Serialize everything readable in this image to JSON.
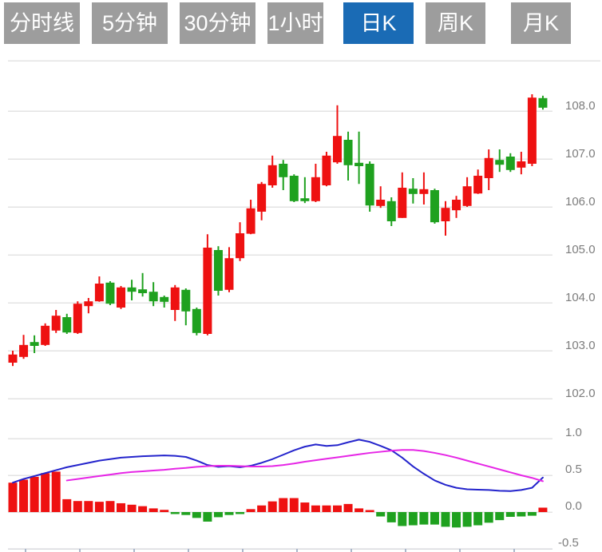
{
  "toolbar": {
    "tabs": [
      {
        "label": "分时线",
        "active": false
      },
      {
        "label": "5分钟",
        "active": false
      },
      {
        "label": "30分钟",
        "active": false
      },
      {
        "label": "1小时",
        "active": false
      },
      {
        "label": "日K",
        "active": true
      },
      {
        "label": "周K",
        "active": false
      },
      {
        "label": "月K",
        "active": false
      }
    ]
  },
  "colors": {
    "up_candle": "#ee1111",
    "down_candle": "#1fa11f",
    "dif_line": "#2424cc",
    "dea_line": "#e626e6",
    "tab_bg": "#9d9d9d",
    "tab_active_bg": "#1a6bb5",
    "tab_text": "#ffffff",
    "grid": "#e3e3e3",
    "border": "#d8dadd",
    "axis_text": "#7d7d7d",
    "tick": "#aab6ca"
  },
  "chart_data": {
    "type": "candlestick-with-macd",
    "candle_format": [
      "open",
      "close",
      "high",
      "low",
      "direction(u=red-up,d=green-down)"
    ],
    "price_panel": {
      "y_tick_labels": [
        "108.0",
        "107.0",
        "106.0",
        "105.0",
        "104.0",
        "103.0",
        "102.0"
      ],
      "y_tick_values": [
        108,
        107,
        106,
        105,
        104,
        103,
        102
      ],
      "grid": true,
      "candles": [
        [
          102.75,
          102.92,
          103.0,
          102.68,
          "u"
        ],
        [
          102.87,
          103.12,
          103.33,
          102.83,
          "u"
        ],
        [
          103.18,
          103.1,
          103.32,
          102.95,
          "d"
        ],
        [
          103.12,
          103.52,
          103.57,
          103.1,
          "u"
        ],
        [
          103.42,
          103.73,
          103.85,
          103.37,
          "u"
        ],
        [
          103.7,
          103.38,
          103.77,
          103.35,
          "d"
        ],
        [
          103.37,
          103.98,
          104.03,
          103.35,
          "u"
        ],
        [
          103.93,
          104.03,
          104.1,
          103.78,
          "u"
        ],
        [
          104.03,
          104.4,
          104.55,
          104.02,
          "u"
        ],
        [
          104.42,
          103.98,
          104.45,
          103.95,
          "d"
        ],
        [
          103.9,
          104.32,
          104.35,
          103.87,
          "u"
        ],
        [
          104.32,
          104.23,
          104.48,
          104.05,
          "d"
        ],
        [
          104.28,
          104.2,
          104.62,
          104.13,
          "d"
        ],
        [
          104.23,
          104.03,
          104.43,
          103.93,
          "d"
        ],
        [
          104.12,
          104.02,
          104.15,
          103.9,
          "d"
        ],
        [
          103.85,
          104.32,
          104.37,
          103.62,
          "u"
        ],
        [
          104.27,
          103.82,
          104.3,
          103.53,
          "d"
        ],
        [
          103.87,
          103.37,
          103.9,
          103.32,
          "d"
        ],
        [
          103.35,
          105.15,
          105.43,
          103.32,
          "u"
        ],
        [
          105.1,
          104.25,
          105.18,
          104.15,
          "d"
        ],
        [
          104.27,
          104.93,
          105.16,
          104.22,
          "u"
        ],
        [
          104.93,
          105.45,
          105.68,
          104.87,
          "u"
        ],
        [
          105.44,
          105.97,
          106.15,
          105.43,
          "u"
        ],
        [
          105.9,
          106.48,
          106.52,
          105.72,
          "u"
        ],
        [
          106.45,
          106.87,
          107.07,
          106.4,
          "u"
        ],
        [
          106.9,
          106.62,
          106.98,
          106.35,
          "d"
        ],
        [
          106.65,
          106.12,
          106.68,
          106.1,
          "d"
        ],
        [
          106.18,
          106.12,
          106.62,
          106.08,
          "d"
        ],
        [
          106.12,
          106.62,
          106.9,
          106.1,
          "u"
        ],
        [
          106.45,
          107.07,
          107.15,
          106.43,
          "u"
        ],
        [
          106.93,
          107.48,
          108.12,
          106.9,
          "u"
        ],
        [
          107.4,
          106.87,
          107.57,
          106.55,
          "d"
        ],
        [
          106.92,
          106.85,
          107.57,
          106.48,
          "d"
        ],
        [
          106.9,
          106.03,
          106.95,
          105.9,
          "d"
        ],
        [
          106.02,
          106.15,
          106.43,
          105.98,
          "u"
        ],
        [
          106.12,
          105.7,
          106.2,
          105.6,
          "d"
        ],
        [
          105.77,
          106.4,
          106.72,
          105.77,
          "u"
        ],
        [
          106.38,
          106.27,
          106.6,
          106.07,
          "d"
        ],
        [
          106.27,
          106.37,
          106.72,
          106.05,
          "u"
        ],
        [
          106.35,
          105.68,
          106.38,
          105.65,
          "d"
        ],
        [
          105.7,
          105.98,
          106.12,
          105.4,
          "u"
        ],
        [
          105.93,
          106.15,
          106.23,
          105.77,
          "u"
        ],
        [
          106.02,
          106.43,
          106.62,
          106.0,
          "u"
        ],
        [
          106.28,
          106.65,
          106.78,
          106.27,
          "u"
        ],
        [
          106.6,
          107.02,
          107.2,
          106.35,
          "u"
        ],
        [
          106.98,
          106.88,
          107.2,
          106.73,
          "d"
        ],
        [
          107.05,
          106.77,
          107.12,
          106.73,
          "d"
        ],
        [
          106.82,
          106.95,
          107.15,
          106.68,
          "u"
        ],
        [
          106.9,
          108.28,
          108.35,
          106.85,
          "u"
        ],
        [
          108.27,
          108.07,
          108.32,
          108.03,
          "d"
        ]
      ]
    },
    "macd_panel": {
      "y_tick_labels": [
        "1.0",
        "0.5",
        "0.0",
        "-0.5"
      ],
      "y_tick_values": [
        1.0,
        0.5,
        0.0,
        -0.5
      ],
      "histogram": [
        0.4,
        0.44,
        0.48,
        0.53,
        0.55,
        0.175,
        0.15,
        0.15,
        0.14,
        0.15,
        0.12,
        0.1,
        0.08,
        0.05,
        0.03,
        -0.02,
        -0.04,
        -0.08,
        -0.13,
        -0.07,
        -0.04,
        -0.02,
        0.04,
        0.09,
        0.145,
        0.19,
        0.19,
        0.13,
        0.09,
        0.09,
        0.09,
        0.11,
        0.05,
        0.025,
        -0.06,
        -0.14,
        -0.19,
        -0.18,
        -0.17,
        -0.17,
        -0.2,
        -0.21,
        -0.2,
        -0.18,
        -0.145,
        -0.11,
        -0.065,
        -0.06,
        -0.05,
        0.06
      ],
      "dif": [
        0.4,
        0.45,
        0.49,
        0.53,
        0.57,
        0.61,
        0.64,
        0.67,
        0.7,
        0.72,
        0.74,
        0.75,
        0.76,
        0.765,
        0.77,
        0.765,
        0.75,
        0.7,
        0.64,
        0.615,
        0.625,
        0.61,
        0.63,
        0.67,
        0.72,
        0.78,
        0.84,
        0.89,
        0.92,
        0.9,
        0.91,
        0.95,
        0.985,
        0.955,
        0.9,
        0.84,
        0.74,
        0.62,
        0.52,
        0.43,
        0.37,
        0.33,
        0.31,
        0.305,
        0.3,
        0.29,
        0.285,
        0.3,
        0.33,
        0.47
      ],
      "dea": [
        null,
        null,
        null,
        null,
        null,
        0.43,
        0.45,
        0.47,
        0.49,
        0.51,
        0.53,
        0.545,
        0.555,
        0.565,
        0.575,
        0.59,
        0.6,
        0.615,
        0.625,
        0.63,
        0.63,
        0.625,
        0.62,
        0.62,
        0.625,
        0.64,
        0.66,
        0.685,
        0.705,
        0.725,
        0.745,
        0.765,
        0.785,
        0.805,
        0.82,
        0.835,
        0.845,
        0.845,
        0.83,
        0.805,
        0.775,
        0.74,
        0.7,
        0.66,
        0.62,
        0.58,
        0.54,
        0.5,
        0.465,
        0.42
      ]
    }
  }
}
